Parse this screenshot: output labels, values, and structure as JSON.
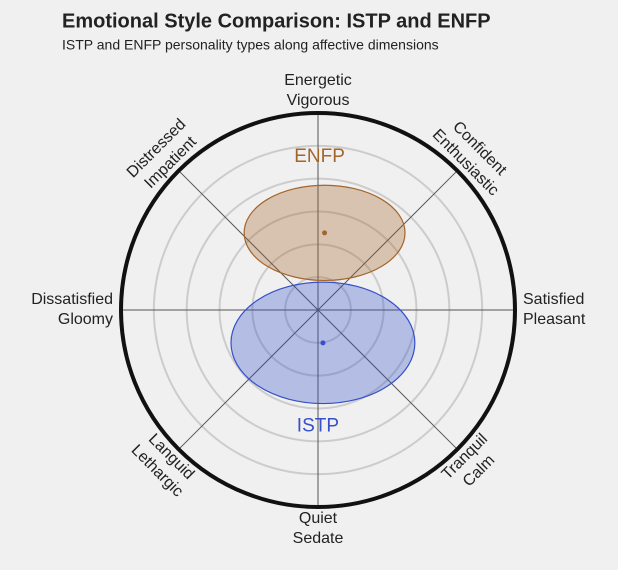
{
  "chart_data": {
    "type": "ellipse",
    "title": "Emotional Style Comparison: ISTP and ENFP",
    "subtitle": "ISTP and ENFP personality types along affective dimensions",
    "axis_labels": [
      [
        "Energetic",
        "Vigorous"
      ],
      [
        "Confident",
        "Enthusiastic"
      ],
      [
        "Satisfied",
        "Pleasant"
      ],
      [
        "Tranquil",
        "Calm"
      ],
      [
        "Quiet",
        "Sedate"
      ],
      [
        "Languid",
        "Lethargic"
      ],
      [
        "Dissatisfied",
        "Gloomy"
      ],
      [
        "Distressed",
        "Impatient"
      ]
    ],
    "rlim": [
      0,
      1.2
    ],
    "rticks": [
      0.2,
      0.4,
      0.6,
      0.8,
      1.0
    ],
    "grid": true,
    "series": [
      {
        "name": "ENFP",
        "color": "#a4652a",
        "x": 0.04,
        "y": 0.47,
        "width": 0.49,
        "height": 0.29
      },
      {
        "name": "ISTP",
        "color": "#3550c8",
        "x": 0.03,
        "y": -0.2,
        "width": 0.56,
        "height": 0.37
      }
    ]
  }
}
